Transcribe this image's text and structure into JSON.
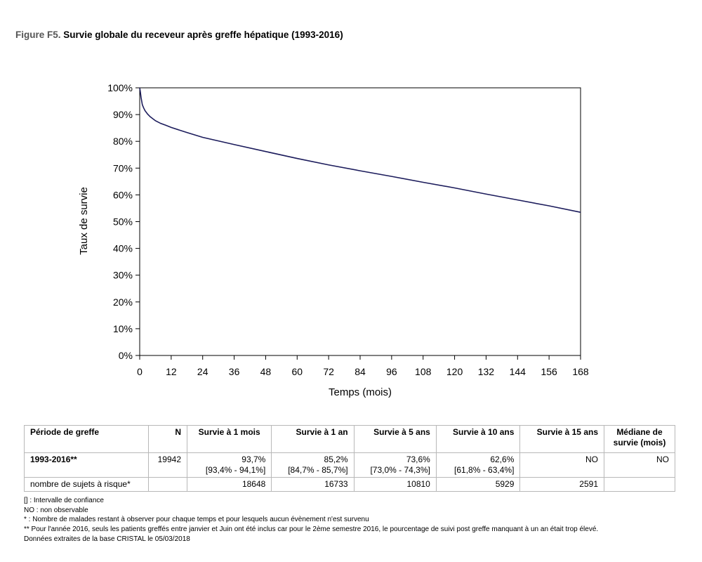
{
  "figure": {
    "label": "Figure F5.",
    "title": "Survie globale du receveur après greffe hépatique (1993-2016)"
  },
  "colors": {
    "curve": "#1c1c5c",
    "axis": "#000000",
    "table_border": "#b8b8b8"
  },
  "chart_data": {
    "type": "line",
    "xlabel": "Temps (mois)",
    "ylabel": "Taux de survie",
    "xlim": [
      0,
      168
    ],
    "ylim": [
      0,
      100
    ],
    "x_ticks": [
      0,
      12,
      24,
      36,
      48,
      60,
      72,
      84,
      96,
      108,
      120,
      132,
      144,
      156,
      168
    ],
    "y_ticks": [
      0,
      10,
      20,
      30,
      40,
      50,
      60,
      70,
      80,
      90,
      100
    ],
    "y_tick_labels": [
      "0%",
      "10%",
      "20%",
      "30%",
      "40%",
      "50%",
      "60%",
      "70%",
      "80%",
      "90%",
      "100%"
    ],
    "grid": false,
    "series": [
      {
        "x": [
          0,
          0.25,
          0.5,
          1,
          1.5,
          2,
          3,
          4,
          6,
          8,
          10,
          12,
          18,
          24,
          36,
          48,
          60,
          72,
          84,
          96,
          108,
          120,
          132,
          144,
          156,
          168
        ],
        "y": [
          100,
          98.5,
          96.5,
          93.7,
          92.5,
          91.5,
          90.2,
          89.2,
          87.7,
          86.7,
          86.0,
          85.2,
          83.3,
          81.5,
          78.8,
          76.2,
          73.6,
          71.2,
          69.0,
          66.9,
          64.7,
          62.6,
          60.3,
          58.1,
          55.9,
          53.5
        ]
      }
    ]
  },
  "table": {
    "headers": [
      "Période de greffe",
      "N",
      "Survie à 1 mois",
      "Survie à 1 an",
      "Survie à 5 ans",
      "Survie à 10 ans",
      "Survie à 15 ans",
      "Médiane de survie (mois)"
    ],
    "row_main": {
      "period": "1993-2016**",
      "n": "19942",
      "values": [
        "93,7%",
        "85,2%",
        "73,6%",
        "62,6%"
      ],
      "ci": [
        "[93,4% - 94,1%]",
        "[84,7% - 85,7%]",
        "[73,0% - 74,3%]",
        "[61,8% - 63,4%]"
      ],
      "s15": "NO",
      "median": "NO"
    },
    "row_risk": {
      "label": "nombre de sujets à risque*",
      "values": [
        "18648",
        "16733",
        "10810",
        "5929",
        "2591"
      ]
    }
  },
  "notes": [
    "[] : Intervalle de confiance",
    "NO : non observable",
    "* : Nombre de malades restant à observer pour chaque temps et pour lesquels aucun évènement n'est survenu",
    "** Pour l'année 2016, seuls les patients greffés entre janvier et Juin ont été inclus car pour le 2ème semestre 2016, le pourcentage de suivi post greffe manquant à un an était trop élevé.",
    "Données extraites de la base CRISTAL le 05/03/2018"
  ]
}
